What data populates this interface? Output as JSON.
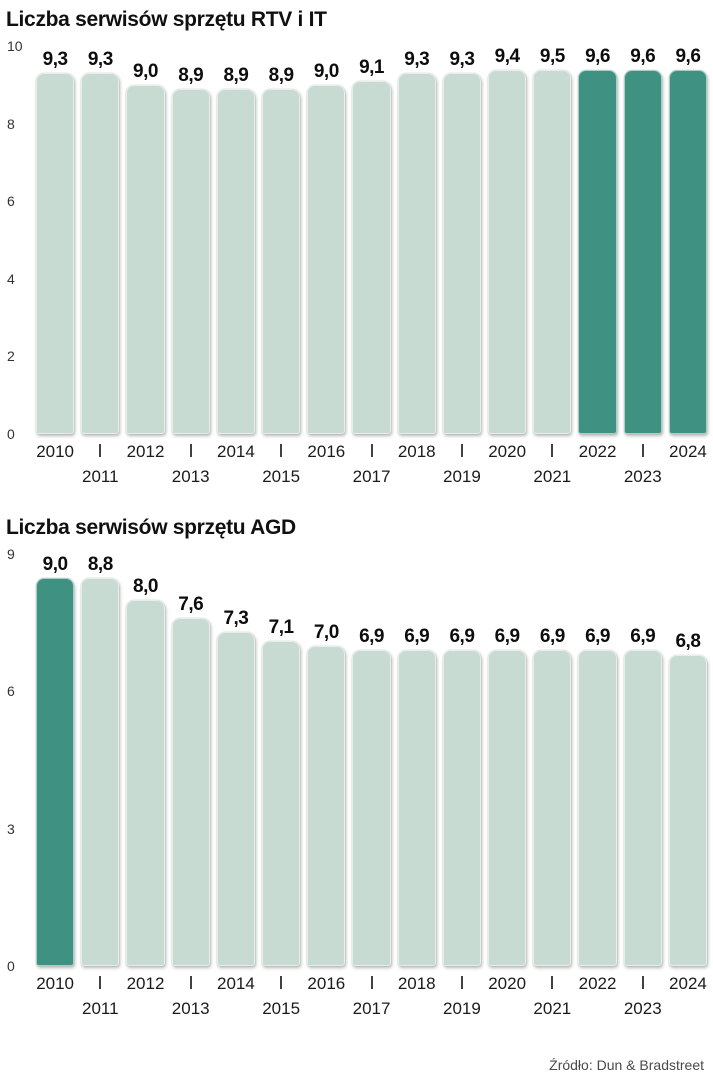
{
  "source_label": "Źródło: Dun & Bradstreet",
  "colors": {
    "bar_light": "#c8dbd3",
    "bar_dark": "#3f9282",
    "value_label": "#0d0d0d",
    "axis_text": "#333333",
    "source_text": "#4a4a4a"
  },
  "chart_data": [
    {
      "type": "bar",
      "title": "Liczba serwisów sprzętu RTV i IT",
      "categories": [
        "2010",
        "2011",
        "2012",
        "2013",
        "2014",
        "2015",
        "2016",
        "2017",
        "2018",
        "2019",
        "2020",
        "2021",
        "2022",
        "2023",
        "2024"
      ],
      "values": [
        9.3,
        9.3,
        9.0,
        8.9,
        8.9,
        8.9,
        9.0,
        9.1,
        9.3,
        9.3,
        9.4,
        9.5,
        9.6,
        9.6,
        9.6
      ],
      "value_labels": [
        "9,3",
        "9,3",
        "9,0",
        "8,9",
        "8,9",
        "8,9",
        "9,0",
        "9,1",
        "9,3",
        "9,3",
        "9,4",
        "9,5",
        "9,6",
        "9,6",
        "9,6"
      ],
      "highlight_indices": [
        12,
        13,
        14
      ],
      "xlabel": "",
      "ylabel": "",
      "ylim": [
        0,
        10
      ],
      "yticks": [
        0,
        2,
        4,
        6,
        8,
        10
      ],
      "grid": false,
      "legend": "none"
    },
    {
      "type": "bar",
      "title": "Liczba serwisów sprzętu AGD",
      "categories": [
        "2010",
        "2011",
        "2012",
        "2013",
        "2014",
        "2015",
        "2016",
        "2017",
        "2018",
        "2019",
        "2020",
        "2021",
        "2022",
        "2023",
        "2024"
      ],
      "values": [
        9.0,
        8.8,
        8.0,
        7.6,
        7.3,
        7.1,
        7.0,
        6.9,
        6.9,
        6.9,
        6.9,
        6.9,
        6.9,
        6.9,
        6.8
      ],
      "value_labels": [
        "9,0",
        "8,8",
        "8,0",
        "7,6",
        "7,3",
        "7,1",
        "7,0",
        "6,9",
        "6,9",
        "6,9",
        "6,9",
        "6,9",
        "6,9",
        "6,9",
        "6,8"
      ],
      "highlight_indices": [
        0
      ],
      "xlabel": "",
      "ylabel": "",
      "ylim": [
        0,
        9
      ],
      "yticks": [
        0,
        3,
        6,
        9
      ],
      "grid": false,
      "legend": "none"
    }
  ]
}
